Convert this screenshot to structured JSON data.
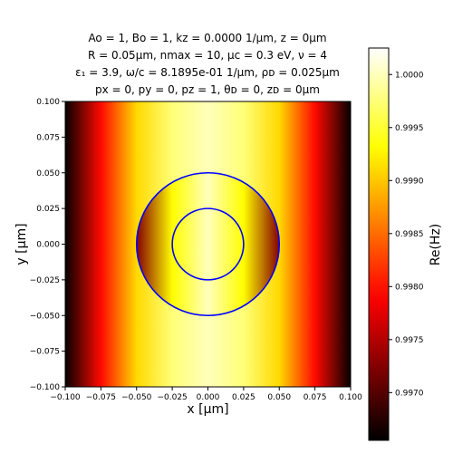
{
  "chart_data": {
    "type": "heatmap",
    "title_lines": [
      "Ao = 1, Bo = 1, kz = 0.0000 1/μm, z = 0μm",
      "R = 0.05μm, nmax = 10, μᴄ = 0.3 eV, ν = 4",
      "ε₁ = 3.9, ω/c = 8.1895e-01 1/μm, ρᴅ = 0.025μm",
      "px = 0, py = 0, pz = 1, θᴅ = 0, zᴅ = 0μm"
    ],
    "xlabel": "x [μm]",
    "ylabel": "y [μm]",
    "colorbar_label": "Re(Hz)",
    "colormap": "hot",
    "xlim": [
      -0.1,
      0.1
    ],
    "ylim": [
      -0.1,
      0.1
    ],
    "x_ticks": [
      "−0.100",
      "−0.075",
      "−0.050",
      "−0.025",
      "0.000",
      "0.025",
      "0.050",
      "0.075",
      "0.100"
    ],
    "y_ticks": [
      "0.100",
      "0.075",
      "0.050",
      "0.025",
      "0.000",
      "−0.025",
      "−0.050",
      "−0.075",
      "−0.100"
    ],
    "color_range": [
      0.99655,
      1.00025
    ],
    "colorbar_ticks": [
      "1.0000",
      "0.9995",
      "0.9990",
      "0.9985",
      "0.9980",
      "0.9975",
      "0.9970"
    ],
    "field_profile": {
      "x": [
        -0.1,
        -0.075,
        -0.05,
        -0.025,
        0.0,
        0.025,
        0.05,
        0.075,
        0.1
      ],
      "value_outside": [
        0.99658,
        0.99795,
        0.9991,
        0.99975,
        1.0,
        0.99975,
        0.9991,
        0.99795,
        0.99658
      ],
      "value_inside_disk": [
        null,
        null,
        0.99725,
        0.9993,
        1.0,
        0.9993,
        0.99725,
        null,
        null
      ]
    },
    "circles": [
      {
        "center": [
          0,
          0
        ],
        "radius": 0.05,
        "color": "#0000ff"
      },
      {
        "center": [
          0,
          0
        ],
        "radius": 0.025,
        "color": "#0000ff"
      }
    ]
  }
}
